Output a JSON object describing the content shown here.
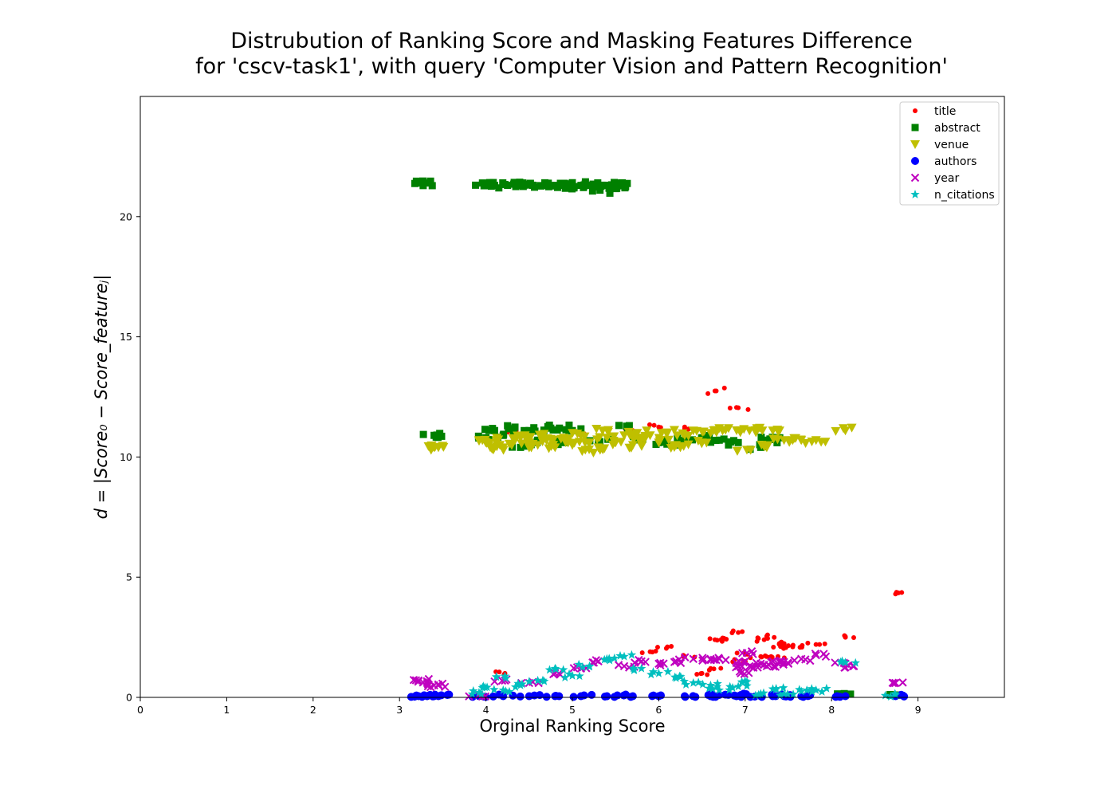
{
  "chart_data": {
    "type": "scatter",
    "title_line1": "Distrubution of Ranking Score and Masking Features Difference",
    "title_line2": "for 'cscv-task1', with query 'Computer Vision and Pattern Recognition'",
    "xlabel": "Orginal Ranking Score",
    "ylabel": "d = |Score₀ − Score_featureⱼ|",
    "xlim": [
      0,
      10
    ],
    "ylim": [
      0,
      25
    ],
    "x_ticks": [
      "0",
      "1",
      "2",
      "3",
      "4",
      "5",
      "6",
      "7",
      "8",
      "9"
    ],
    "y_ticks": [
      "0",
      "5",
      "10",
      "15",
      "20"
    ],
    "grid": false,
    "legend_position": "top-right",
    "series": [
      {
        "name": "title",
        "marker": "dot",
        "color": "#ff0000",
        "points": [
          [
            4.35,
            11.1
          ],
          [
            6.0,
            11.25
          ],
          [
            6.3,
            11.25
          ],
          [
            6.65,
            12.75
          ],
          [
            6.92,
            12.05
          ],
          [
            5.1,
            11.0
          ],
          [
            5.7,
            11.1
          ],
          [
            4.22,
            1.0
          ],
          [
            5.9,
            1.9
          ],
          [
            6.1,
            2.1
          ],
          [
            6.3,
            1.7
          ],
          [
            6.5,
            1.0
          ],
          [
            6.65,
            2.4
          ],
          [
            6.72,
            2.4
          ],
          [
            6.92,
            2.7
          ],
          [
            6.98,
            1.5
          ],
          [
            7.0,
            1.8
          ],
          [
            7.18,
            1.7
          ],
          [
            7.22,
            2.4
          ],
          [
            7.25,
            2.55
          ],
          [
            7.3,
            1.7
          ],
          [
            7.38,
            1.7
          ],
          [
            7.42,
            2.3
          ],
          [
            7.45,
            2.05
          ],
          [
            7.5,
            2.15
          ],
          [
            7.55,
            2.1
          ],
          [
            7.65,
            2.1
          ],
          [
            7.82,
            2.2
          ],
          [
            8.16,
            2.5
          ],
          [
            8.74,
            4.3
          ],
          [
            6.6,
            1.2
          ]
        ]
      },
      {
        "name": "abstract",
        "marker": "square",
        "color": "#008000",
        "points": [
          [
            3.22,
            21.4
          ],
          [
            3.3,
            21.4
          ],
          [
            3.96,
            21.4
          ],
          [
            4.02,
            21.3
          ],
          [
            4.1,
            21.3
          ],
          [
            4.25,
            21.3
          ],
          [
            4.32,
            21.35
          ],
          [
            4.4,
            21.3
          ],
          [
            4.48,
            21.35
          ],
          [
            4.55,
            21.3
          ],
          [
            4.68,
            21.3
          ],
          [
            4.75,
            21.3
          ],
          [
            4.82,
            21.3
          ],
          [
            4.9,
            21.3
          ],
          [
            5.02,
            21.25
          ],
          [
            5.1,
            21.3
          ],
          [
            5.18,
            21.3
          ],
          [
            5.24,
            21.35
          ],
          [
            5.31,
            21.3
          ],
          [
            5.32,
            21.1
          ],
          [
            5.38,
            21.3
          ],
          [
            5.44,
            21.3
          ],
          [
            5.5,
            21.2
          ],
          [
            5.52,
            21.4
          ],
          [
            5.58,
            21.3
          ],
          [
            3.4,
            10.9
          ],
          [
            3.45,
            10.9
          ],
          [
            4.0,
            10.8
          ],
          [
            4.1,
            11.1
          ],
          [
            4.2,
            10.9
          ],
          [
            4.25,
            11.3
          ],
          [
            4.5,
            11.1
          ],
          [
            4.6,
            10.7
          ],
          [
            4.75,
            11.2
          ],
          [
            4.85,
            11.2
          ],
          [
            5.0,
            11.1
          ],
          [
            5.3,
            10.7
          ],
          [
            5.64,
            11.2
          ],
          [
            5.8,
            10.8
          ],
          [
            6.0,
            10.6
          ],
          [
            6.3,
            10.7
          ],
          [
            6.5,
            10.8
          ],
          [
            6.7,
            10.7
          ],
          [
            6.92,
            10.6
          ],
          [
            7.18,
            10.4
          ],
          [
            7.25,
            10.7
          ],
          [
            7.4,
            10.8
          ],
          [
            4.4,
            10.4
          ],
          [
            4.9,
            10.6
          ],
          [
            6.15,
            10.5
          ],
          [
            8.16,
            0.1
          ],
          [
            8.74,
            0.1
          ]
        ]
      },
      {
        "name": "venue",
        "marker": "triangle-down",
        "color": "#bfbf00",
        "points": [
          [
            3.4,
            10.4
          ],
          [
            3.45,
            10.4
          ],
          [
            3.92,
            10.7
          ],
          [
            4.0,
            10.6
          ],
          [
            4.05,
            10.4
          ],
          [
            4.12,
            10.7
          ],
          [
            4.2,
            10.4
          ],
          [
            4.3,
            10.5
          ],
          [
            4.4,
            10.8
          ],
          [
            4.5,
            10.6
          ],
          [
            4.6,
            10.5
          ],
          [
            4.7,
            10.7
          ],
          [
            4.8,
            10.4
          ],
          [
            4.9,
            10.8
          ],
          [
            5.0,
            10.5
          ],
          [
            5.1,
            10.9
          ],
          [
            5.2,
            10.6
          ],
          [
            5.3,
            10.4
          ],
          [
            5.4,
            10.8
          ],
          [
            5.5,
            10.6
          ],
          [
            5.6,
            10.9
          ],
          [
            5.7,
            10.5
          ],
          [
            5.8,
            10.7
          ],
          [
            5.9,
            10.9
          ],
          [
            6.0,
            10.6
          ],
          [
            6.1,
            11.0
          ],
          [
            6.2,
            10.5
          ],
          [
            6.3,
            10.9
          ],
          [
            6.4,
            11.1
          ],
          [
            6.5,
            10.6
          ],
          [
            6.6,
            11.0
          ],
          [
            6.7,
            11.2
          ],
          [
            6.95,
            11.1
          ],
          [
            7.02,
            10.3
          ],
          [
            7.05,
            11.1
          ],
          [
            7.2,
            11.1
          ],
          [
            7.25,
            10.4
          ],
          [
            7.32,
            11.1
          ],
          [
            7.45,
            10.7
          ],
          [
            7.55,
            10.7
          ],
          [
            7.65,
            10.7
          ],
          [
            7.82,
            10.7
          ],
          [
            8.16,
            11.1
          ],
          [
            4.45,
            10.9
          ],
          [
            4.65,
            10.9
          ],
          [
            5.15,
            10.3
          ],
          [
            5.35,
            11.1
          ],
          [
            5.75,
            11.0
          ],
          [
            6.25,
            10.4
          ]
        ]
      },
      {
        "name": "authors",
        "marker": "circle",
        "color": "#0000ff",
        "points": [
          [
            3.22,
            0.05
          ],
          [
            3.32,
            0.05
          ],
          [
            3.4,
            0.05
          ],
          [
            3.45,
            0.05
          ],
          [
            3.92,
            0.05
          ],
          [
            4.2,
            0.05
          ],
          [
            4.5,
            0.05
          ],
          [
            4.8,
            0.05
          ],
          [
            5.1,
            0.05
          ],
          [
            5.4,
            0.05
          ],
          [
            5.7,
            0.05
          ],
          [
            6.0,
            0.05
          ],
          [
            6.3,
            0.05
          ],
          [
            6.6,
            0.05
          ],
          [
            6.7,
            0.1
          ],
          [
            6.9,
            0.05
          ],
          [
            6.95,
            0.1
          ],
          [
            7.18,
            0.05
          ],
          [
            7.32,
            0.05
          ],
          [
            7.45,
            0.05
          ],
          [
            7.65,
            0.05
          ],
          [
            8.16,
            0.05
          ],
          [
            8.74,
            0.05
          ]
        ]
      },
      {
        "name": "year",
        "marker": "x",
        "color": "#bf00bf",
        "points": [
          [
            3.22,
            0.7
          ],
          [
            3.32,
            0.6
          ],
          [
            3.4,
            0.5
          ],
          [
            3.45,
            0.5
          ],
          [
            3.92,
            0.1
          ],
          [
            4.22,
            0.7
          ],
          [
            4.5,
            0.6
          ],
          [
            4.8,
            1.0
          ],
          [
            5.1,
            1.2
          ],
          [
            5.3,
            1.5
          ],
          [
            5.6,
            1.3
          ],
          [
            5.8,
            1.5
          ],
          [
            6.0,
            1.4
          ],
          [
            6.2,
            1.5
          ],
          [
            6.4,
            1.6
          ],
          [
            6.6,
            1.6
          ],
          [
            6.7,
            1.6
          ],
          [
            6.92,
            1.3
          ],
          [
            6.95,
            1.0
          ],
          [
            7.0,
            1.5
          ],
          [
            7.02,
            1.85
          ],
          [
            7.05,
            1.3
          ],
          [
            7.18,
            1.4
          ],
          [
            7.25,
            1.3
          ],
          [
            7.32,
            1.5
          ],
          [
            7.42,
            1.5
          ],
          [
            7.5,
            1.4
          ],
          [
            7.65,
            1.6
          ],
          [
            7.82,
            1.75
          ],
          [
            8.16,
            1.4
          ],
          [
            8.16,
            1.25
          ],
          [
            8.74,
            0.6
          ]
        ]
      },
      {
        "name": "n_citations",
        "marker": "star",
        "color": "#00bfbf",
        "points": [
          [
            3.92,
            0.2
          ],
          [
            3.96,
            0.4
          ],
          [
            4.12,
            0.85
          ],
          [
            4.2,
            0.3
          ],
          [
            4.4,
            0.5
          ],
          [
            4.6,
            0.7
          ],
          [
            4.8,
            1.2
          ],
          [
            5.0,
            0.9
          ],
          [
            5.2,
            1.3
          ],
          [
            5.4,
            1.6
          ],
          [
            5.6,
            1.7
          ],
          [
            5.8,
            1.2
          ],
          [
            6.0,
            1.0
          ],
          [
            6.2,
            0.8
          ],
          [
            6.4,
            0.6
          ],
          [
            6.6,
            0.5
          ],
          [
            6.7,
            0.3
          ],
          [
            6.92,
            0.45
          ],
          [
            7.02,
            0.65
          ],
          [
            7.18,
            0.15
          ],
          [
            7.32,
            0.35
          ],
          [
            7.45,
            0.15
          ],
          [
            7.65,
            0.25
          ],
          [
            7.82,
            0.3
          ],
          [
            8.16,
            1.45
          ],
          [
            8.74,
            0.1
          ]
        ]
      }
    ]
  }
}
